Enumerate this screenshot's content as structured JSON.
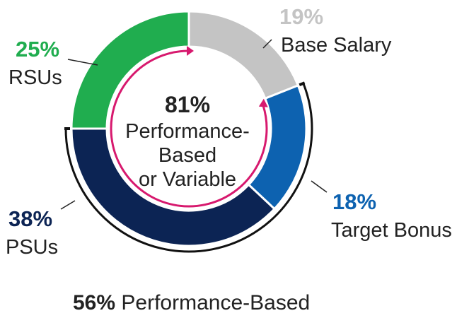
{
  "chart_data": {
    "type": "pie",
    "variant": "donut",
    "slices": [
      {
        "label": "Base Salary",
        "value": 19,
        "display": "19%",
        "color": "#c4c4c4",
        "key": "base_salary"
      },
      {
        "label": "Target Bonus",
        "value": 18,
        "display": "18%",
        "color": "#0d62b0",
        "key": "target_bonus"
      },
      {
        "label": "PSUs",
        "value": 38,
        "display": "38%",
        "color": "#0c2454",
        "key": "psus"
      },
      {
        "label": "RSUs",
        "value": 25,
        "display": "25%",
        "color": "#20ad4f",
        "key": "rsus"
      }
    ],
    "center": {
      "value": "81%",
      "lines": [
        "Performance-",
        "Based",
        "or Variable"
      ]
    },
    "bracket_label": {
      "value": "56%",
      "text": "Performance-Based"
    },
    "inner_arc_color": "#d7196e",
    "outer_bracket_color": "#111111"
  }
}
